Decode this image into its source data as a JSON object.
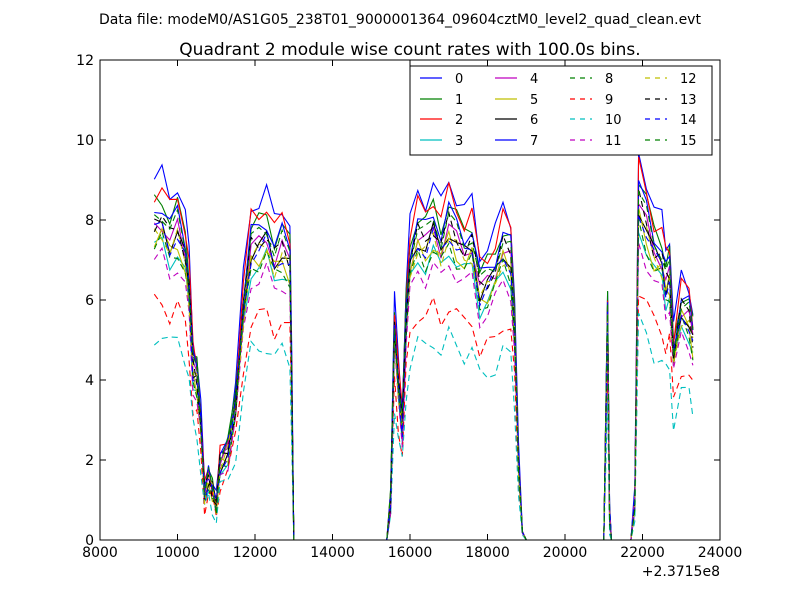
{
  "figure": {
    "header": "Data file: modeM0/AS1G05_238T01_9000001364_09604cztM0_level2_quad_clean.evt",
    "title": "Quadrant 2 module wise count rates with 100.0s bins.",
    "x_offset_label": "+2.3715e8"
  },
  "chart_data": {
    "type": "line",
    "title": "Quadrant 2 module wise count rates with 100.0s bins.",
    "xlabel": "",
    "ylabel": "",
    "x_offset_label": "+2.3715e8",
    "xlim": [
      8000,
      24000
    ],
    "ylim": [
      0,
      12
    ],
    "xticks": [
      8000,
      10000,
      12000,
      14000,
      16000,
      18000,
      20000,
      22000,
      24000
    ],
    "yticks": [
      0,
      2,
      4,
      6,
      8,
      10,
      12
    ],
    "grid": false,
    "legend_placement": "top-right",
    "legend_columns": 4,
    "series": [
      {
        "name": "0",
        "color": "#0000ff",
        "dash": "solid",
        "scale": 1.1
      },
      {
        "name": "1",
        "color": "#008000",
        "dash": "solid",
        "scale": 1.03
      },
      {
        "name": "2",
        "color": "#ff0000",
        "dash": "solid",
        "scale": 1.06
      },
      {
        "name": "3",
        "color": "#00bfbf",
        "dash": "solid",
        "scale": 0.89
      },
      {
        "name": "4",
        "color": "#bf00bf",
        "dash": "solid",
        "scale": 0.96
      },
      {
        "name": "5",
        "color": "#bfbf00",
        "dash": "solid",
        "scale": 0.92
      },
      {
        "name": "6",
        "color": "#000000",
        "dash": "solid",
        "scale": 0.95
      },
      {
        "name": "7",
        "color": "#0000ff",
        "dash": "solid",
        "scale": 1.01
      },
      {
        "name": "8",
        "color": "#008000",
        "dash": "dashed",
        "scale": 0.9
      },
      {
        "name": "9",
        "color": "#ff0000",
        "dash": "dashed",
        "scale": 0.72
      },
      {
        "name": "10",
        "color": "#00bfbf",
        "dash": "dashed",
        "scale": 0.62
      },
      {
        "name": "11",
        "color": "#bf00bf",
        "dash": "dashed",
        "scale": 0.85
      },
      {
        "name": "12",
        "color": "#bfbf00",
        "dash": "dashed",
        "scale": 0.93
      },
      {
        "name": "13",
        "color": "#000000",
        "dash": "dashed",
        "scale": 0.97
      },
      {
        "name": "14",
        "color": "#0000ff",
        "dash": "dashed",
        "scale": 0.94
      },
      {
        "name": "15",
        "color": "#008000",
        "dash": "dashed",
        "scale": 0.99
      }
    ],
    "base_profile": {
      "x": [
        9400,
        9600,
        9800,
        10000,
        10200,
        10300,
        10400,
        10500,
        10600,
        10700,
        10800,
        10900,
        11000,
        11100,
        11300,
        11500,
        11700,
        11900,
        12100,
        12300,
        12500,
        12700,
        12900,
        12950,
        13000,
        13100,
        14000,
        15000,
        15400,
        15500,
        15600,
        15700,
        15800,
        15900,
        16000,
        16200,
        16400,
        16600,
        16800,
        17000,
        17200,
        17400,
        17600,
        17800,
        18000,
        18200,
        18400,
        18600,
        18700,
        18800,
        18900,
        19000,
        20000,
        20800,
        21000,
        21100,
        21150,
        21200,
        21500,
        21700,
        21800,
        21900,
        22100,
        22300,
        22500,
        22600,
        22700,
        22800,
        23000,
        23200,
        23300
      ],
      "y": [
        8.2,
        8.3,
        7.8,
        8.1,
        7.4,
        6.5,
        4.5,
        4.2,
        3.0,
        1.2,
        1.6,
        1.3,
        0.9,
        2.0,
        2.3,
        3.5,
        6.0,
        7.6,
        7.7,
        7.9,
        7.3,
        7.6,
        7.2,
        4.0,
        0.0,
        0.0,
        0.0,
        0.0,
        0.0,
        1.0,
        5.5,
        4.0,
        3.0,
        5.8,
        7.2,
        7.9,
        7.7,
        8.1,
        7.6,
        8.2,
        7.8,
        7.5,
        7.7,
        6.5,
        6.7,
        7.0,
        7.6,
        7.3,
        5.5,
        2.0,
        0.2,
        0.0,
        0.0,
        0.0,
        0.0,
        5.8,
        0.6,
        0.0,
        0.0,
        0.0,
        1.0,
        8.8,
        8.2,
        7.5,
        7.3,
        6.7,
        6.9,
        4.8,
        6.0,
        5.8,
        5.2
      ]
    }
  }
}
